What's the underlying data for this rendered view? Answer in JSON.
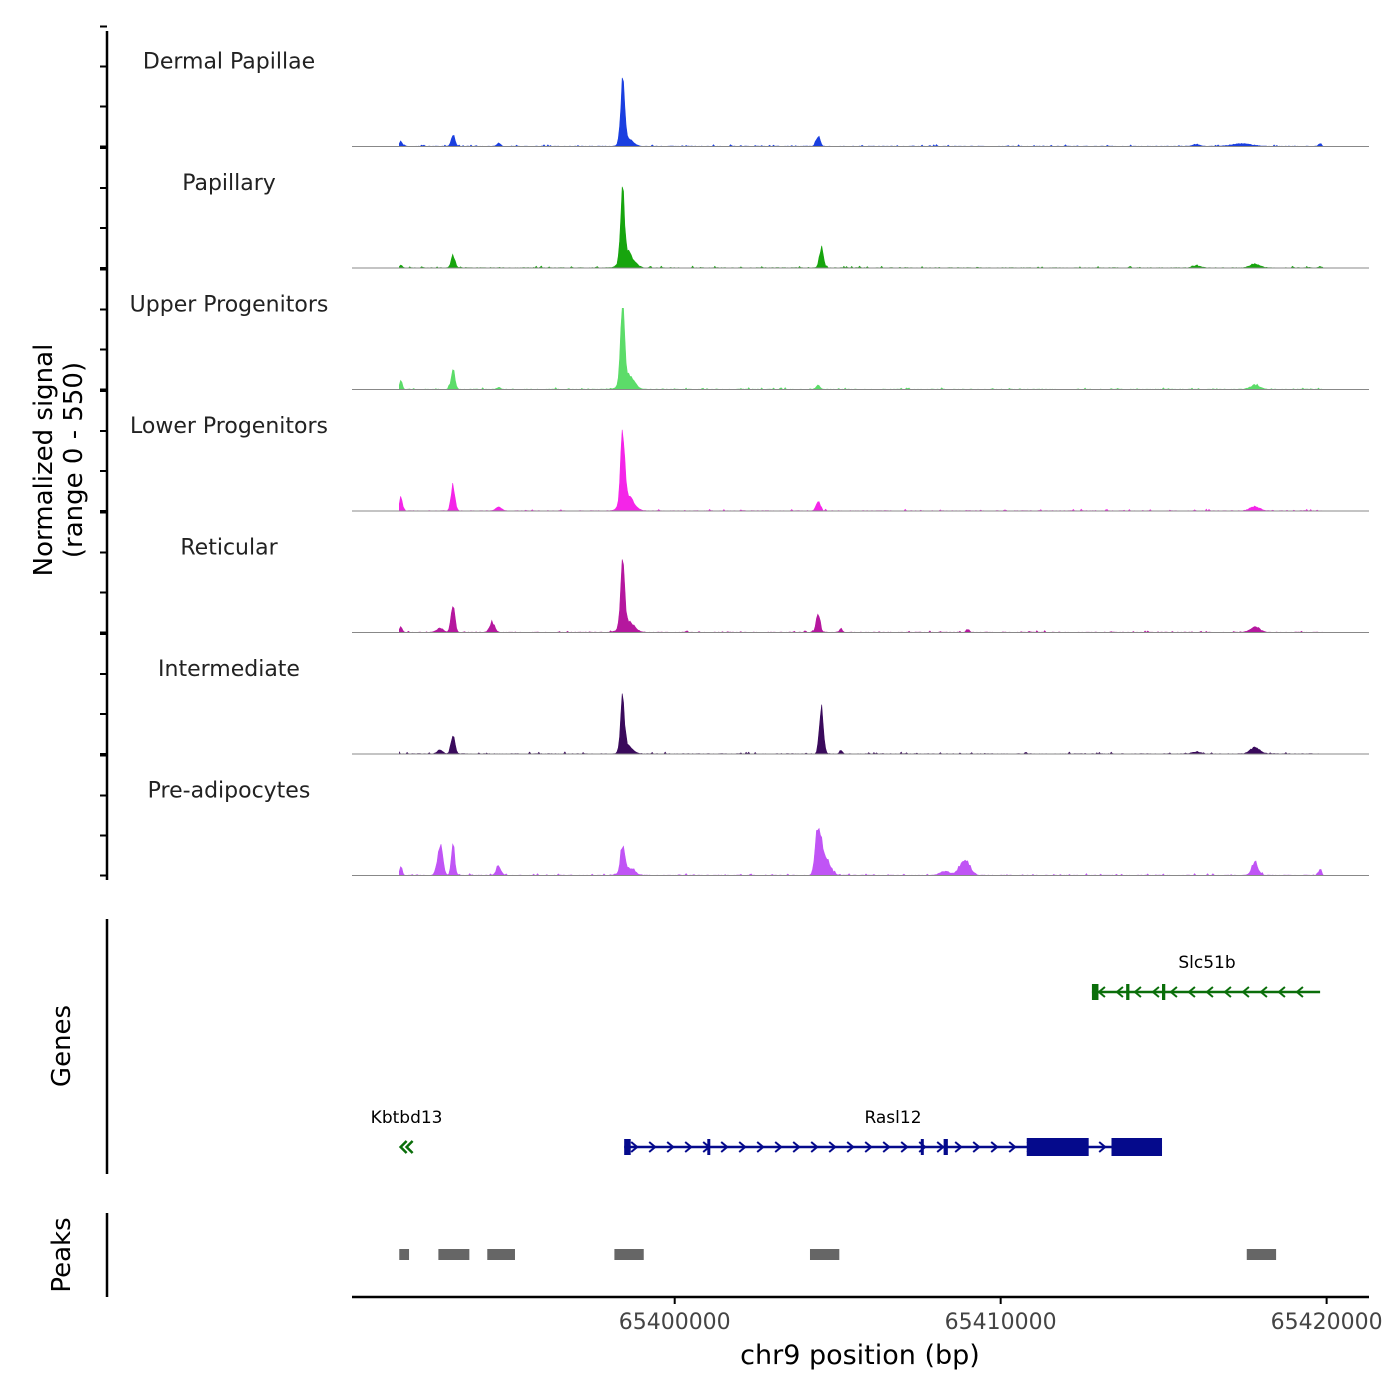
{
  "chart_data": {
    "type": "area",
    "ylabel_line1": "Normalized signal",
    "ylabel_line2": "(range 0 - 550)",
    "ylim": [
      0,
      550
    ],
    "xlabel": "chr9 position (bp)",
    "xlim": [
      65390100,
      65421300
    ],
    "x_ticks": [
      65400000,
      65410000,
      65420000
    ],
    "x_tick_labels": [
      "65400000",
      "65410000",
      "65420000"
    ],
    "data_range": [
      65391550,
      65419900
    ],
    "tracks": [
      {
        "name": "Dermal Papillae",
        "color": "#1a3fe0",
        "peaks": [
          [
            65391600,
            50,
            40
          ],
          [
            65393200,
            110,
            60
          ],
          [
            65394600,
            30,
            60
          ],
          [
            65398400,
            580,
            60
          ],
          [
            65398550,
            80,
            150
          ],
          [
            65404400,
            100,
            60
          ],
          [
            65416000,
            18,
            120
          ],
          [
            65417400,
            25,
            300
          ],
          [
            65419800,
            30,
            40
          ]
        ]
      },
      {
        "name": "Papillary",
        "color": "#17a50e",
        "peaks": [
          [
            65391600,
            30,
            40
          ],
          [
            65393200,
            120,
            60
          ],
          [
            65398400,
            680,
            60
          ],
          [
            65398550,
            150,
            180
          ],
          [
            65404500,
            200,
            60
          ],
          [
            65416000,
            20,
            120
          ],
          [
            65417800,
            35,
            150
          ],
          [
            65419800,
            15,
            40
          ]
        ]
      },
      {
        "name": "Upper Progenitors",
        "color": "#5cdc69",
        "peaks": [
          [
            65391600,
            100,
            40
          ],
          [
            65393200,
            200,
            60
          ],
          [
            65394600,
            20,
            60
          ],
          [
            65398400,
            800,
            60
          ],
          [
            65398550,
            150,
            180
          ],
          [
            65404400,
            40,
            60
          ],
          [
            65417800,
            40,
            150
          ]
        ]
      },
      {
        "name": "Lower Progenitors",
        "color": "#f425e8",
        "peaks": [
          [
            65391600,
            150,
            40
          ],
          [
            65393200,
            240,
            60
          ],
          [
            65394600,
            40,
            80
          ],
          [
            65398400,
            720,
            60
          ],
          [
            65398550,
            150,
            180
          ],
          [
            65404400,
            100,
            60
          ],
          [
            65417800,
            40,
            150
          ]
        ]
      },
      {
        "name": "Reticular",
        "color": "#b5179e",
        "peaks": [
          [
            65391600,
            60,
            40
          ],
          [
            65392800,
            40,
            100
          ],
          [
            65393200,
            250,
            60
          ],
          [
            65394400,
            90,
            80
          ],
          [
            65398400,
            560,
            60
          ],
          [
            65398550,
            120,
            180
          ],
          [
            65404400,
            180,
            60
          ],
          [
            65405100,
            40,
            40
          ],
          [
            65409000,
            30,
            40
          ],
          [
            65417800,
            50,
            150
          ]
        ]
      },
      {
        "name": "Intermediate",
        "color": "#3a0a5c",
        "peaks": [
          [
            65392800,
            40,
            80
          ],
          [
            65393200,
            200,
            60
          ],
          [
            65398400,
            480,
            60
          ],
          [
            65398550,
            80,
            150
          ],
          [
            65404500,
            490,
            60
          ],
          [
            65405100,
            35,
            40
          ],
          [
            65416000,
            20,
            120
          ],
          [
            65417800,
            60,
            150
          ]
        ]
      },
      {
        "name": "Pre-adipocytes",
        "color": "#c054f5",
        "peaks": [
          [
            65391600,
            80,
            40
          ],
          [
            65392800,
            290,
            80
          ],
          [
            65393200,
            300,
            50
          ],
          [
            65394600,
            80,
            80
          ],
          [
            65398400,
            260,
            60
          ],
          [
            65398550,
            80,
            180
          ],
          [
            65404400,
            420,
            80
          ],
          [
            65404600,
            200,
            150
          ],
          [
            65408900,
            160,
            150
          ],
          [
            65408300,
            40,
            150
          ],
          [
            65417800,
            120,
            100
          ],
          [
            65419800,
            60,
            40
          ]
        ]
      }
    ],
    "genes_label": "Genes",
    "genes": [
      {
        "name": "Slc51b",
        "strand": "-",
        "color": "#0a6e0a",
        "start": 65412800,
        "end": 65419800,
        "row": 0,
        "exons": [
          [
            65412800,
            65413000
          ],
          [
            65413850,
            65413950
          ],
          [
            65414950,
            65415050
          ]
        ]
      },
      {
        "name": "Kbtbd13",
        "strand": "-",
        "color": "#0a6e0a",
        "start": 65391550,
        "end": 65392000,
        "row": 1,
        "exons": []
      },
      {
        "name": "Rasl12",
        "strand": "+",
        "color": "#050a8c",
        "start": 65398450,
        "end": 65414950,
        "row": 1,
        "exons": [
          [
            65398450,
            65398650
          ],
          [
            65401000,
            65401050
          ],
          [
            65407550,
            65407620
          ],
          [
            65408250,
            65408380
          ],
          [
            65410800,
            65412700
          ],
          [
            65413400,
            65414950
          ]
        ]
      }
    ],
    "peaks_label": "Peaks",
    "peak_regions": [
      [
        65391550,
        65391850
      ],
      [
        65392750,
        65393700
      ],
      [
        65394250,
        65395100
      ],
      [
        65398150,
        65399050
      ],
      [
        65404150,
        65405050
      ],
      [
        65417550,
        65418450
      ]
    ]
  }
}
